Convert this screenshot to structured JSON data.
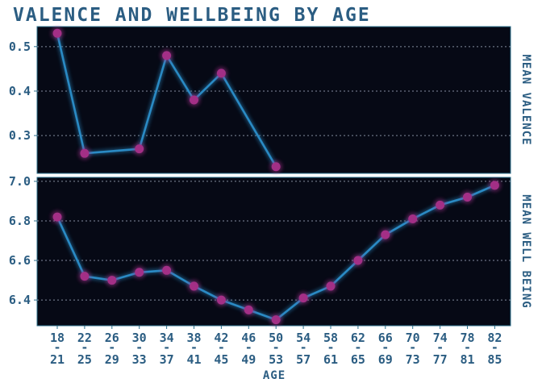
{
  "chart_data": [
    {
      "type": "line",
      "title": "VALENCE AND WELLBEING BY AGE",
      "ylabel": "MEAN VALENCE",
      "xlabel": "",
      "categories": [
        "18-21",
        "22-25",
        "26-29",
        "30-33",
        "34-37",
        "38-41",
        "42-45",
        "46-49",
        "50-53",
        "54-57",
        "58-61",
        "62-65",
        "66-69",
        "70-73",
        "74-77",
        "78-81",
        "82-85"
      ],
      "values": [
        0.53,
        0.26,
        null,
        0.27,
        0.48,
        0.38,
        0.44,
        null,
        0.23,
        null,
        null,
        null,
        null,
        null,
        null,
        null,
        null
      ],
      "ylim": [
        0.215,
        0.545
      ],
      "yticks": [
        0.3,
        0.4,
        0.5
      ],
      "grid": true
    },
    {
      "type": "line",
      "title": "",
      "ylabel": "MEAN WELL BEING",
      "xlabel": "AGE",
      "categories": [
        "18-21",
        "22-25",
        "26-29",
        "30-33",
        "34-37",
        "38-41",
        "42-45",
        "46-49",
        "50-53",
        "54-57",
        "58-61",
        "62-65",
        "66-69",
        "70-73",
        "74-77",
        "78-81",
        "82-85"
      ],
      "values": [
        6.82,
        6.52,
        6.5,
        6.54,
        6.55,
        6.47,
        6.4,
        6.35,
        6.3,
        6.41,
        6.47,
        6.6,
        6.73,
        6.81,
        6.88,
        6.92,
        6.98
      ],
      "ylim": [
        6.27,
        7.02
      ],
      "yticks": [
        6.4,
        6.6,
        6.8,
        7.0
      ],
      "grid": true
    }
  ],
  "style": {
    "background": "#ffffff",
    "panel_bg": "#060915",
    "line_color": "#2a8ac4",
    "marker_color": "#a32f86",
    "text_color": "#2b5d82",
    "grid_color": "#9aa3b6",
    "border_color": "#2b6f8c"
  }
}
